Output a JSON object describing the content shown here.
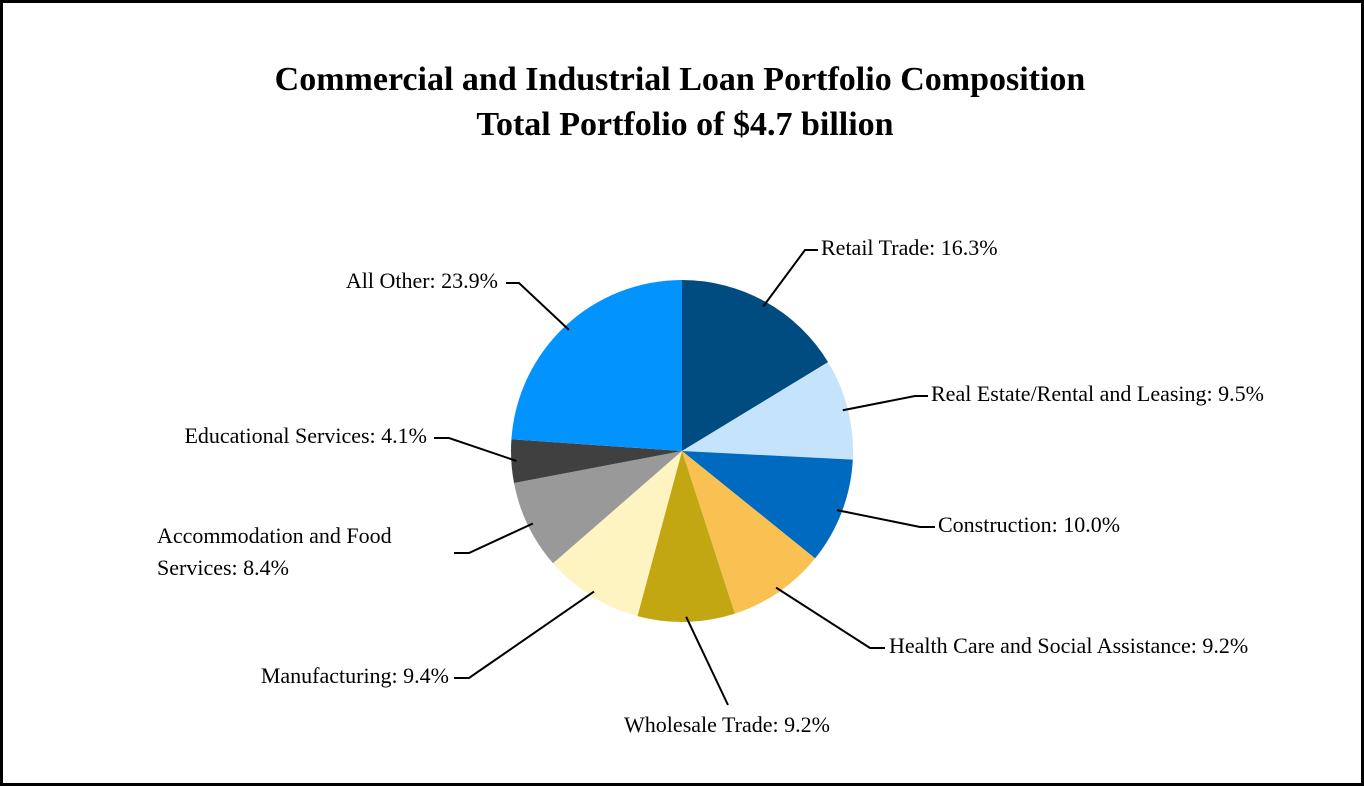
{
  "chart_data": {
    "type": "pie",
    "title": "Commercial and Industrial Loan Portfolio Composition",
    "subtitle": "Total Portfolio of $4.7 billion",
    "values": [
      16.3,
      9.5,
      10.0,
      9.2,
      9.2,
      9.4,
      8.4,
      4.1,
      23.9
    ],
    "value_labels": [
      "Retail Trade: 16.3%",
      "Real Estate/Rental and Leasing: 9.5%",
      "Construction: 10.0%",
      "Health Care and Social Assistance: 9.2%",
      "Wholesale Trade: 9.2%",
      "Manufacturing: 9.4%",
      "Accommodation and Food Services: 8.4%",
      "Educational Services: 4.1%",
      "All Other: 23.9%"
    ],
    "colors": [
      "#004b7f",
      "#c5e3fb",
      "#0069c0",
      "#f8c152",
      "#c2a713",
      "#fdf4c2",
      "#999999",
      "#404040",
      "#0393fd"
    ]
  }
}
